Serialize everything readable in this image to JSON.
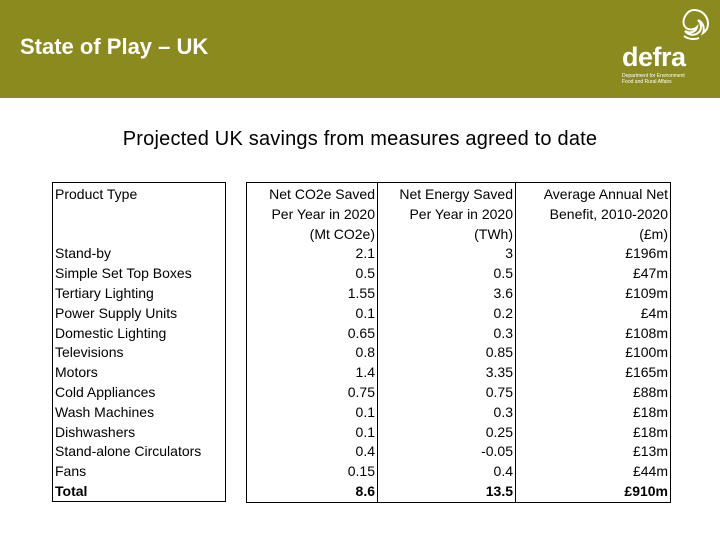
{
  "header": {
    "title": "State of Play – UK",
    "bg_color": "#8a8a1f",
    "logo": {
      "word": "defra",
      "subtext": "Department for Environment Food and Rural Affairs",
      "icon": "defra-leaf-icon"
    }
  },
  "subtitle": "Projected UK savings from measures agreed to date",
  "table": {
    "product_header": "Product Type",
    "columns": [
      {
        "lines": [
          "Net CO2e Saved",
          "Per Year in 2020",
          "(Mt CO2e)"
        ]
      },
      {
        "lines": [
          "Net Energy Saved",
          "Per Year in 2020",
          "(TWh)"
        ]
      },
      {
        "lines": [
          "Average Annual Net",
          "Benefit, 2010-2020",
          "(£m)"
        ]
      }
    ],
    "rows": [
      {
        "product": "Stand-by",
        "co2": "2.1",
        "energy": "3",
        "benefit": "£196m"
      },
      {
        "product": "Simple Set Top Boxes",
        "co2": "0.5",
        "energy": "0.5",
        "benefit": "£47m"
      },
      {
        "product": "Tertiary Lighting",
        "co2": "1.55",
        "energy": "3.6",
        "benefit": "£109m"
      },
      {
        "product": "Power Supply Units",
        "co2": "0.1",
        "energy": "0.2",
        "benefit": "£4m"
      },
      {
        "product": "Domestic Lighting",
        "co2": "0.65",
        "energy": "0.3",
        "benefit": "£108m"
      },
      {
        "product": "Televisions",
        "co2": "0.8",
        "energy": "0.85",
        "benefit": "£100m"
      },
      {
        "product": "Motors",
        "co2": "1.4",
        "energy": "3.35",
        "benefit": "£165m"
      },
      {
        "product": "Cold Appliances",
        "co2": "0.75",
        "energy": "0.75",
        "benefit": "£88m"
      },
      {
        "product": "Wash Machines",
        "co2": "0.1",
        "energy": "0.3",
        "benefit": "£18m"
      },
      {
        "product": "Dishwashers",
        "co2": "0.1",
        "energy": "0.25",
        "benefit": "£18m"
      },
      {
        "product": "Stand-alone Circulators",
        "co2": "0.4",
        "energy": "-0.05",
        "benefit": "£13m"
      },
      {
        "product": "Fans",
        "co2": "0.15",
        "energy": "0.4",
        "benefit": "£44m"
      }
    ],
    "total": {
      "product": "Total",
      "co2": "8.6",
      "energy": "13.5",
      "benefit": "£910m"
    }
  }
}
